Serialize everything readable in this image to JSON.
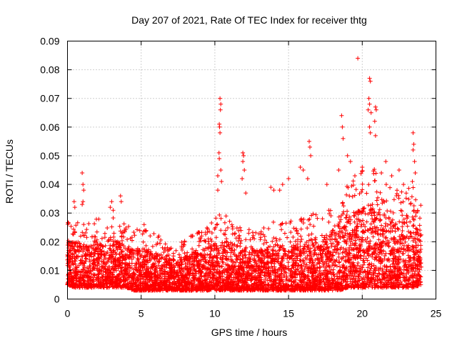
{
  "chart_data": {
    "type": "scatter",
    "title": "Day 207 of 2021, Rate Of TEC Index for receiver thtg",
    "xlabel": "GPS time / hours",
    "ylabel": "ROTI / TECUs",
    "xlim": [
      0,
      25
    ],
    "ylim": [
      0,
      0.09
    ],
    "xticks": [
      "0",
      "5",
      "10",
      "15",
      "20",
      "25"
    ],
    "yticks": [
      "0",
      "0.01",
      "0.02",
      "0.03",
      "0.04",
      "0.05",
      "0.06",
      "0.07",
      "0.08",
      "0.09"
    ],
    "grid": true,
    "marker": "+",
    "series_color": "#ff0000",
    "envelope": {
      "hours": [
        0,
        0.5,
        1,
        1.5,
        2,
        2.5,
        3,
        3.5,
        4,
        4.5,
        5,
        5.5,
        6,
        6.5,
        7,
        7.5,
        8,
        8.5,
        9,
        9.5,
        10,
        10.5,
        11,
        11.5,
        12,
        12.5,
        13,
        13.5,
        14,
        14.5,
        15,
        15.5,
        16,
        16.5,
        17,
        17.5,
        18,
        18.5,
        19,
        19.5,
        20,
        20.5,
        21,
        21.5,
        22,
        22.5,
        23,
        23.5,
        24
      ],
      "base_low": [
        0.005,
        0.004,
        0.004,
        0.004,
        0.004,
        0.004,
        0.004,
        0.004,
        0.004,
        0.003,
        0.003,
        0.003,
        0.003,
        0.003,
        0.003,
        0.003,
        0.003,
        0.003,
        0.003,
        0.003,
        0.003,
        0.003,
        0.003,
        0.003,
        0.003,
        0.003,
        0.003,
        0.003,
        0.003,
        0.003,
        0.003,
        0.003,
        0.003,
        0.003,
        0.003,
        0.003,
        0.003,
        0.003,
        0.004,
        0.004,
        0.004,
        0.004,
        0.004,
        0.004,
        0.004,
        0.004,
        0.004,
        0.004,
        0.005
      ],
      "base_high": [
        0.02,
        0.02,
        0.019,
        0.019,
        0.02,
        0.02,
        0.021,
        0.02,
        0.019,
        0.018,
        0.018,
        0.017,
        0.016,
        0.015,
        0.014,
        0.014,
        0.015,
        0.016,
        0.017,
        0.018,
        0.02,
        0.021,
        0.02,
        0.019,
        0.018,
        0.017,
        0.017,
        0.018,
        0.019,
        0.02,
        0.02,
        0.019,
        0.02,
        0.021,
        0.021,
        0.022,
        0.024,
        0.026,
        0.028,
        0.03,
        0.032,
        0.033,
        0.032,
        0.03,
        0.028,
        0.027,
        0.027,
        0.028,
        0.026
      ]
    },
    "notable_points": [
      {
        "x": 0.45,
        "y": 0.034
      },
      {
        "x": 0.5,
        "y": 0.032
      },
      {
        "x": 1.0,
        "y": 0.044
      },
      {
        "x": 1.05,
        "y": 0.04
      },
      {
        "x": 1.1,
        "y": 0.038
      },
      {
        "x": 1.05,
        "y": 0.034
      },
      {
        "x": 1.0,
        "y": 0.033
      },
      {
        "x": 2.9,
        "y": 0.032
      },
      {
        "x": 3.0,
        "y": 0.034
      },
      {
        "x": 3.1,
        "y": 0.031
      },
      {
        "x": 3.6,
        "y": 0.036
      },
      {
        "x": 3.65,
        "y": 0.034
      },
      {
        "x": 10.35,
        "y": 0.07
      },
      {
        "x": 10.4,
        "y": 0.068
      },
      {
        "x": 10.38,
        "y": 0.066
      },
      {
        "x": 10.3,
        "y": 0.061
      },
      {
        "x": 10.32,
        "y": 0.06
      },
      {
        "x": 10.35,
        "y": 0.058
      },
      {
        "x": 10.28,
        "y": 0.051
      },
      {
        "x": 10.3,
        "y": 0.049
      },
      {
        "x": 10.4,
        "y": 0.045
      },
      {
        "x": 10.2,
        "y": 0.043
      },
      {
        "x": 10.45,
        "y": 0.041
      },
      {
        "x": 10.2,
        "y": 0.038
      },
      {
        "x": 11.9,
        "y": 0.051
      },
      {
        "x": 11.95,
        "y": 0.05
      },
      {
        "x": 11.9,
        "y": 0.048
      },
      {
        "x": 12.0,
        "y": 0.045
      },
      {
        "x": 11.85,
        "y": 0.042
      },
      {
        "x": 12.1,
        "y": 0.037
      },
      {
        "x": 13.8,
        "y": 0.039
      },
      {
        "x": 14.0,
        "y": 0.038
      },
      {
        "x": 14.4,
        "y": 0.038
      },
      {
        "x": 14.6,
        "y": 0.04
      },
      {
        "x": 15.0,
        "y": 0.042
      },
      {
        "x": 15.8,
        "y": 0.046
      },
      {
        "x": 16.0,
        "y": 0.045
      },
      {
        "x": 16.4,
        "y": 0.055
      },
      {
        "x": 16.45,
        "y": 0.053
      },
      {
        "x": 16.5,
        "y": 0.05
      },
      {
        "x": 16.3,
        "y": 0.042
      },
      {
        "x": 17.6,
        "y": 0.04
      },
      {
        "x": 18.4,
        "y": 0.045
      },
      {
        "x": 18.6,
        "y": 0.064
      },
      {
        "x": 18.65,
        "y": 0.06
      },
      {
        "x": 18.7,
        "y": 0.056
      },
      {
        "x": 19.0,
        "y": 0.05
      },
      {
        "x": 19.2,
        "y": 0.048
      },
      {
        "x": 19.7,
        "y": 0.084
      },
      {
        "x": 20.5,
        "y": 0.077
      },
      {
        "x": 20.55,
        "y": 0.076
      },
      {
        "x": 20.45,
        "y": 0.07
      },
      {
        "x": 20.5,
        "y": 0.068
      },
      {
        "x": 20.4,
        "y": 0.066
      },
      {
        "x": 20.6,
        "y": 0.065
      },
      {
        "x": 20.5,
        "y": 0.06
      },
      {
        "x": 20.55,
        "y": 0.058
      },
      {
        "x": 20.9,
        "y": 0.067
      },
      {
        "x": 20.95,
        "y": 0.066
      },
      {
        "x": 20.85,
        "y": 0.062
      },
      {
        "x": 20.9,
        "y": 0.057
      },
      {
        "x": 21.6,
        "y": 0.048
      },
      {
        "x": 22.5,
        "y": 0.045
      },
      {
        "x": 23.45,
        "y": 0.058
      },
      {
        "x": 23.5,
        "y": 0.054
      },
      {
        "x": 23.45,
        "y": 0.052
      },
      {
        "x": 23.55,
        "y": 0.048
      },
      {
        "x": 23.6,
        "y": 0.044
      },
      {
        "x": 23.4,
        "y": 0.041
      },
      {
        "x": 19.5,
        "y": 0.043
      },
      {
        "x": 20.0,
        "y": 0.046
      },
      {
        "x": 21.3,
        "y": 0.044
      },
      {
        "x": 22.0,
        "y": 0.043
      },
      {
        "x": 22.8,
        "y": 0.04
      },
      {
        "x": 5.2,
        "y": 0.026
      },
      {
        "x": 6.2,
        "y": 0.022
      },
      {
        "x": 9.0,
        "y": 0.021
      },
      {
        "x": 8.5,
        "y": 0.022
      }
    ]
  }
}
